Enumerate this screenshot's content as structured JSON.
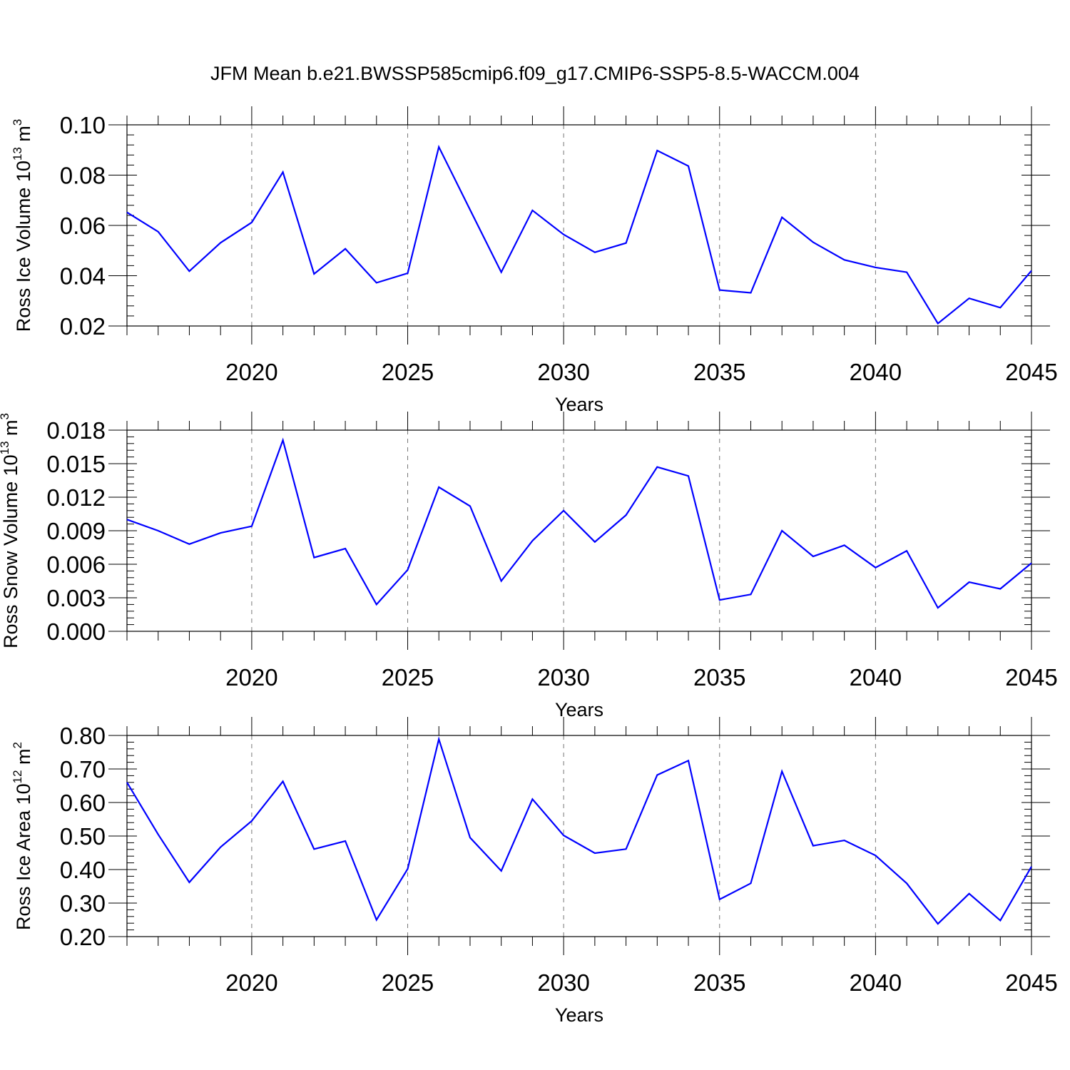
{
  "chart_data": [
    {
      "type": "line",
      "title": "JFM Mean b.e21.BWSSP585cmip6.f09_g17.CMIP6-SSP5-8.5-WACCM.004",
      "xlabel": "Years",
      "ylabel": "Ross Ice Volume 10",
      "ylabel_exp": "13",
      "ylabel_unit": " m",
      "ylabel_unit_exp": "3",
      "xlim": [
        2016,
        2045
      ],
      "ylim": [
        0.02,
        0.1
      ],
      "yticks": [
        "0.02",
        "0.04",
        "0.06",
        "0.08",
        "0.10"
      ],
      "xticks": [
        "2020",
        "2025",
        "2030",
        "2035",
        "2040",
        "2045"
      ],
      "line_color": "#0000ff",
      "x": [
        2016,
        2017,
        2018,
        2019,
        2020,
        2021,
        2022,
        2023,
        2024,
        2025,
        2026,
        2027,
        2028,
        2029,
        2030,
        2031,
        2032,
        2033,
        2034,
        2035,
        2036,
        2037,
        2038,
        2039,
        2040,
        2041,
        2042,
        2043,
        2044,
        2045
      ],
      "values": [
        0.0652,
        0.0575,
        0.0418,
        0.0531,
        0.0612,
        0.0812,
        0.0407,
        0.0507,
        0.0372,
        0.041,
        0.0912,
        0.0662,
        0.0414,
        0.066,
        0.0564,
        0.0493,
        0.053,
        0.0898,
        0.0836,
        0.0343,
        0.0332,
        0.0632,
        0.0533,
        0.0463,
        0.0433,
        0.0414,
        0.021,
        0.031,
        0.0273,
        0.042
      ]
    },
    {
      "type": "line",
      "xlabel": "Years",
      "ylabel": "Ross Snow Volume 10",
      "ylabel_exp": "13",
      "ylabel_unit": " m",
      "ylabel_unit_exp": "3",
      "xlim": [
        2016,
        2045
      ],
      "ylim": [
        0.0,
        0.018
      ],
      "yticks": [
        "0.000",
        "0.003",
        "0.006",
        "0.009",
        "0.012",
        "0.015",
        "0.018"
      ],
      "xticks": [
        "2020",
        "2025",
        "2030",
        "2035",
        "2040",
        "2045"
      ],
      "line_color": "#0000ff",
      "x": [
        2016,
        2017,
        2018,
        2019,
        2020,
        2021,
        2022,
        2023,
        2024,
        2025,
        2026,
        2027,
        2028,
        2029,
        2030,
        2031,
        2032,
        2033,
        2034,
        2035,
        2036,
        2037,
        2038,
        2039,
        2040,
        2041,
        2042,
        2043,
        2044,
        2045
      ],
      "values": [
        0.01,
        0.009,
        0.0078,
        0.0088,
        0.0094,
        0.0171,
        0.0066,
        0.0074,
        0.0024,
        0.0055,
        0.0129,
        0.0112,
        0.0045,
        0.0081,
        0.0108,
        0.008,
        0.0104,
        0.0147,
        0.0139,
        0.0028,
        0.0033,
        0.009,
        0.0067,
        0.0077,
        0.0057,
        0.0072,
        0.0021,
        0.0044,
        0.0038,
        0.0061
      ]
    },
    {
      "type": "line",
      "xlabel": "Years",
      "ylabel": "Ross Ice Area 10",
      "ylabel_exp": "12",
      "ylabel_unit": " m",
      "ylabel_unit_exp": "2",
      "xlim": [
        2016,
        2045
      ],
      "ylim": [
        0.2,
        0.8
      ],
      "yticks": [
        "0.20",
        "0.30",
        "0.40",
        "0.50",
        "0.60",
        "0.70",
        "0.80"
      ],
      "xticks": [
        "2020",
        "2025",
        "2030",
        "2035",
        "2040",
        "2045"
      ],
      "line_color": "#0000ff",
      "x": [
        2016,
        2017,
        2018,
        2019,
        2020,
        2021,
        2022,
        2023,
        2024,
        2025,
        2026,
        2027,
        2028,
        2029,
        2030,
        2031,
        2032,
        2033,
        2034,
        2035,
        2036,
        2037,
        2038,
        2039,
        2040,
        2041,
        2042,
        2043,
        2044,
        2045
      ],
      "values": [
        0.66,
        0.505,
        0.362,
        0.467,
        0.545,
        0.663,
        0.461,
        0.485,
        0.25,
        0.402,
        0.789,
        0.495,
        0.396,
        0.61,
        0.502,
        0.449,
        0.461,
        0.682,
        0.725,
        0.311,
        0.359,
        0.693,
        0.471,
        0.487,
        0.442,
        0.359,
        0.238,
        0.328,
        0.248,
        0.409
      ]
    }
  ]
}
